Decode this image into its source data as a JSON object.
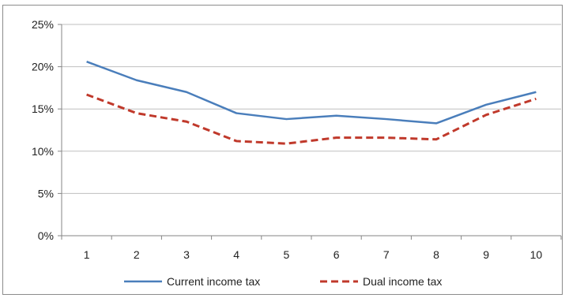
{
  "chart_data": {
    "type": "line",
    "categories": [
      "1",
      "2",
      "3",
      "4",
      "5",
      "6",
      "7",
      "8",
      "9",
      "10"
    ],
    "series": [
      {
        "name": "Current income tax",
        "values": [
          20.6,
          18.4,
          17.0,
          14.5,
          13.8,
          14.2,
          13.8,
          13.3,
          15.5,
          17.0
        ],
        "color": "#4a7ebb",
        "style": "solid"
      },
      {
        "name": "Dual income tax",
        "values": [
          16.7,
          14.5,
          13.5,
          11.2,
          10.9,
          11.6,
          11.6,
          11.4,
          14.3,
          16.2
        ],
        "color": "#c0392b",
        "style": "dashed"
      }
    ],
    "y_ticks": [
      "0%",
      "5%",
      "10%",
      "15%",
      "20%",
      "25%"
    ],
    "ylim": [
      0,
      25
    ],
    "y_unit": "%",
    "grid": "horizontal",
    "legend_position": "bottom"
  }
}
